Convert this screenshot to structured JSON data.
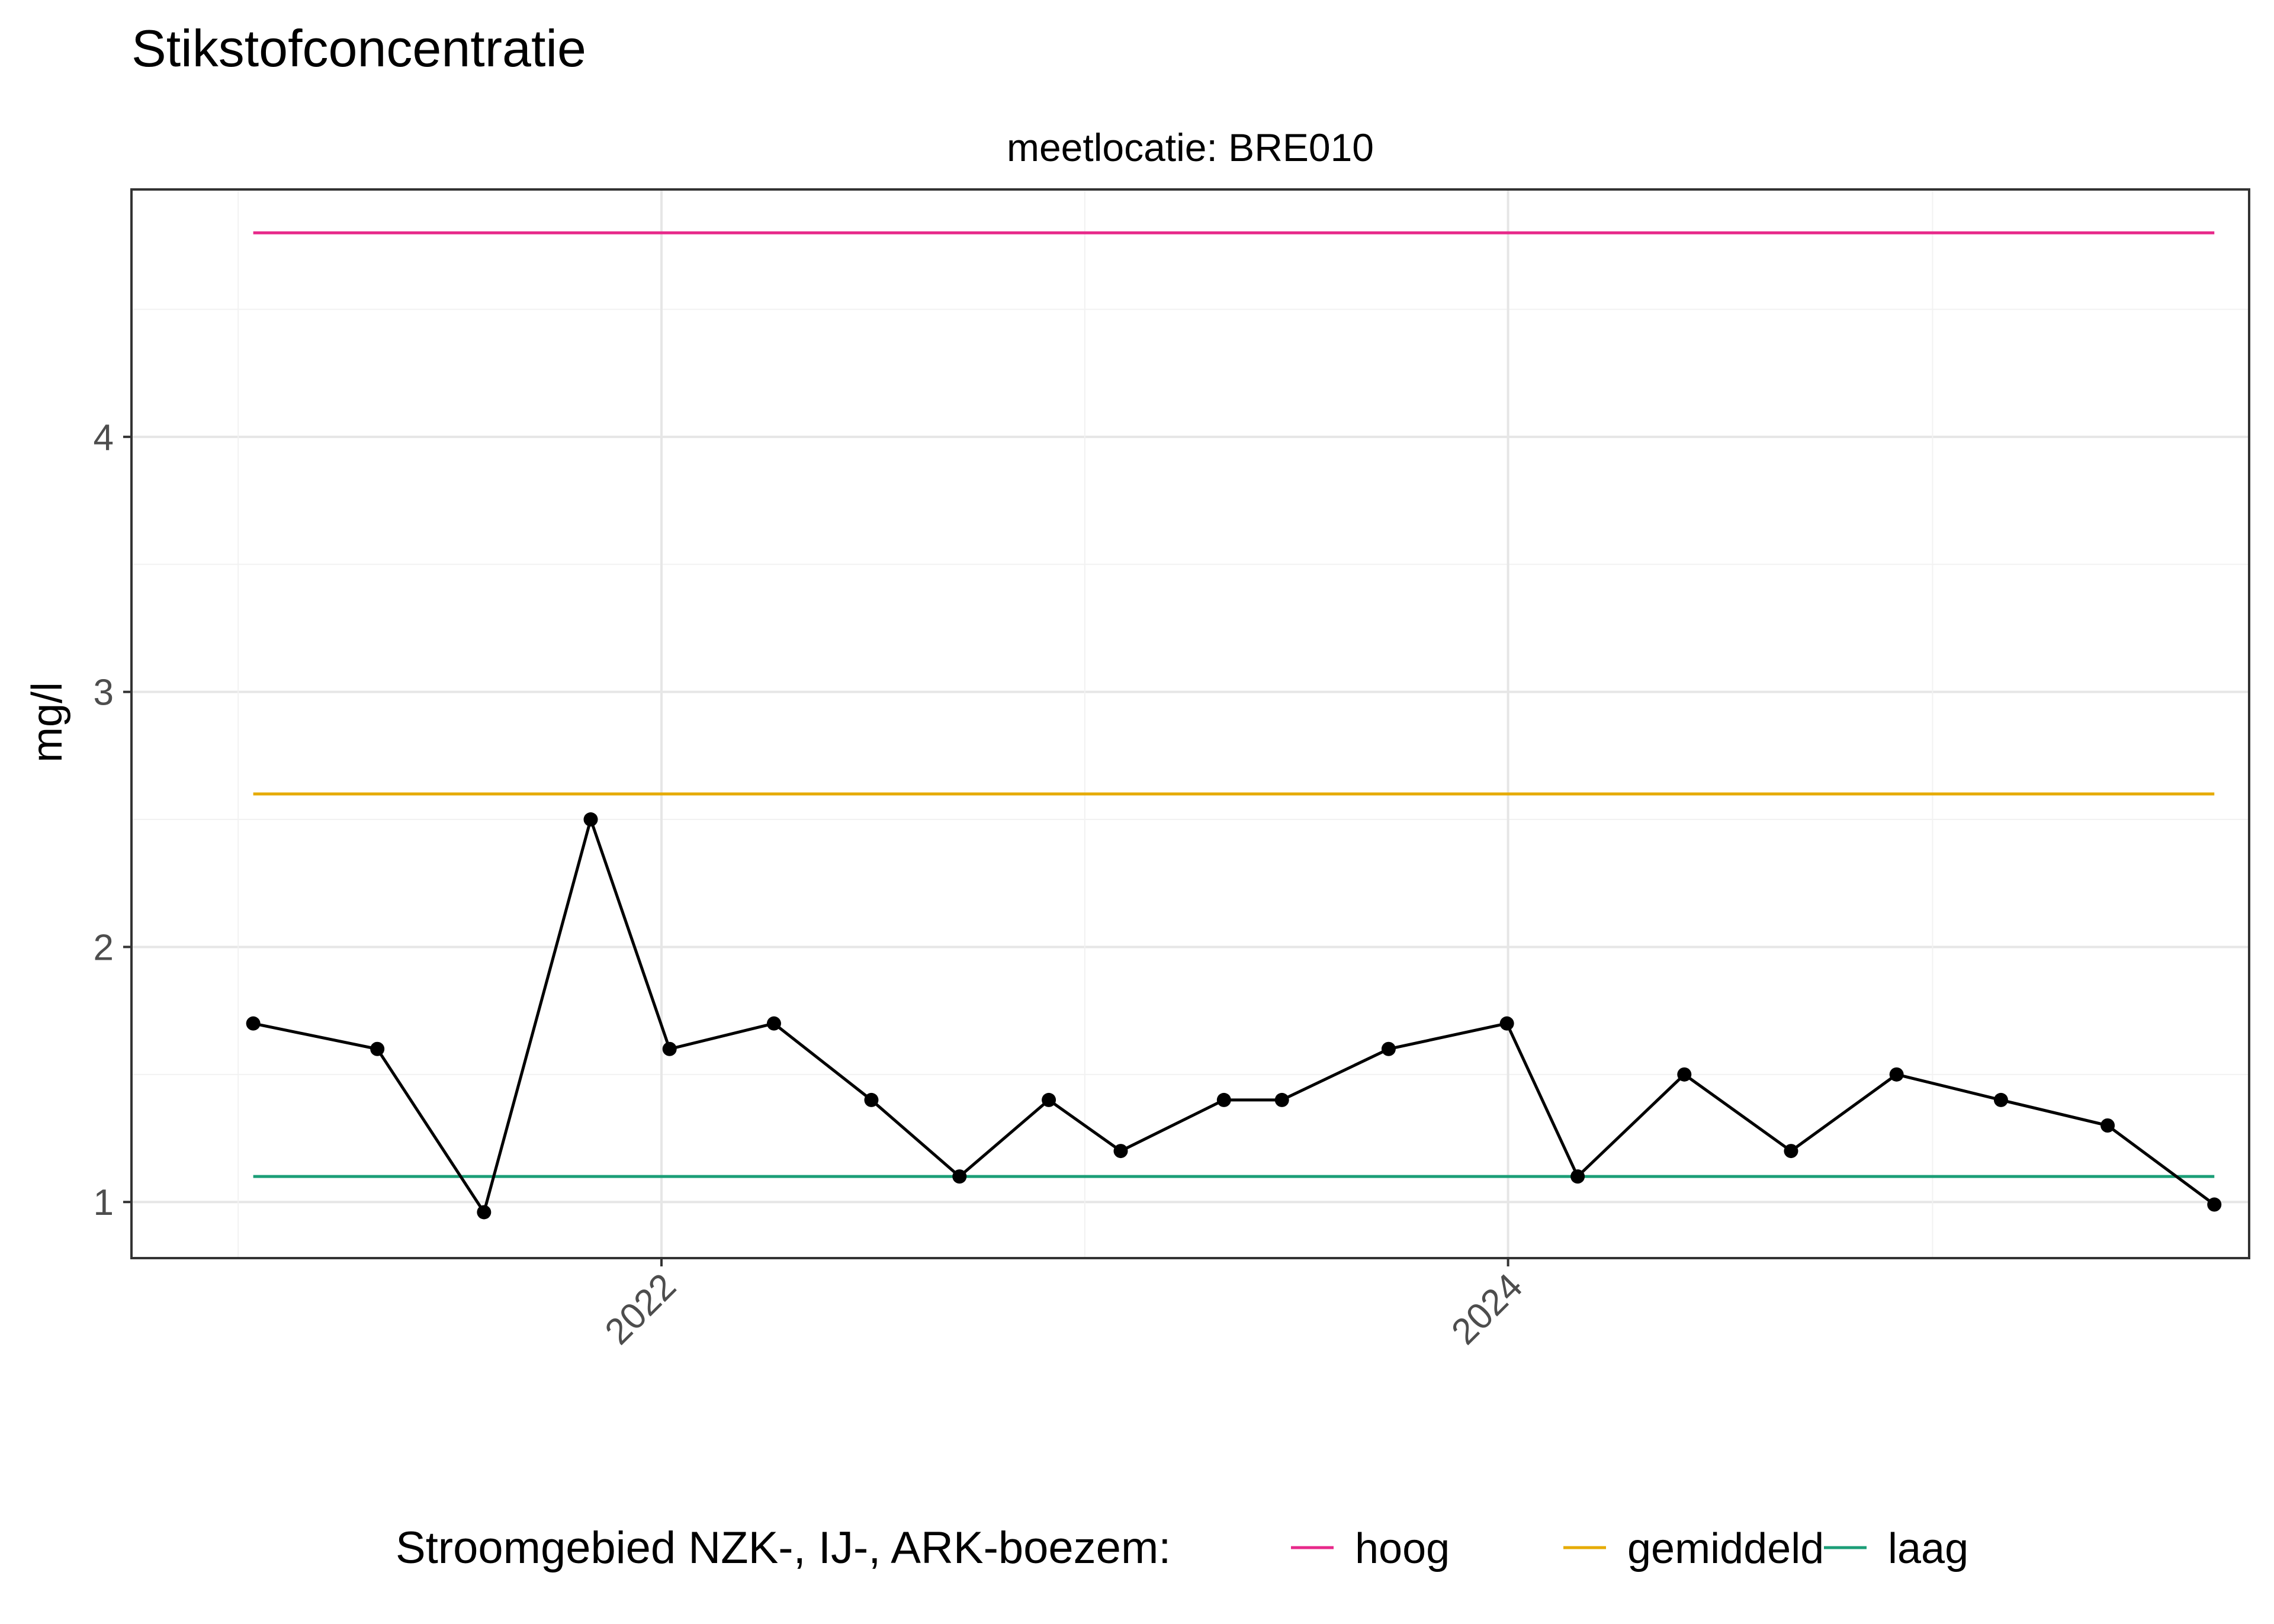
{
  "chart_data": {
    "type": "line",
    "title": "Stikstofconcentratie",
    "facet_label": "meetlocatie: BRE010",
    "xlabel": "",
    "ylabel": "mg/l",
    "x_ticks": [
      "2022",
      "2024"
    ],
    "y_ticks": [
      "1",
      "2",
      "3",
      "4"
    ],
    "xlim": [
      "2020-10-01",
      "2025-10-01"
    ],
    "ylim": [
      0.78,
      4.97
    ],
    "grid": true,
    "legend_position": "bottom",
    "legend_title": "Stroomgebied NZK-, IJ-, ARK-boezem:",
    "reference_lines": [
      {
        "name": "hoog",
        "value": 4.8,
        "color": "#e7298a"
      },
      {
        "name": "gemiddeld",
        "value": 2.6,
        "color": "#e6ab02"
      },
      {
        "name": "laag",
        "value": 1.1,
        "color": "#1b9e77"
      }
    ],
    "series": [
      {
        "color": "#000000",
        "x": [
          "2021-01-14",
          "2021-05-01",
          "2021-08-01",
          "2021-11-01",
          "2022-01-08",
          "2022-04-08",
          "2022-07-01",
          "2022-09-15",
          "2022-12-01",
          "2023-02-01",
          "2023-05-01",
          "2023-06-20",
          "2023-09-20",
          "2023-12-31",
          "2024-03-01",
          "2024-06-01",
          "2024-09-01",
          "2024-12-01",
          "2025-03-01",
          "2025-06-01",
          "2025-09-01"
        ],
        "values": [
          1.7,
          1.6,
          0.96,
          2.5,
          1.6,
          1.7,
          1.4,
          1.1,
          1.4,
          1.2,
          1.4,
          1.4,
          1.6,
          1.7,
          1.1,
          1.5,
          1.2,
          1.5,
          1.4,
          1.3,
          0.99
        ]
      }
    ]
  }
}
